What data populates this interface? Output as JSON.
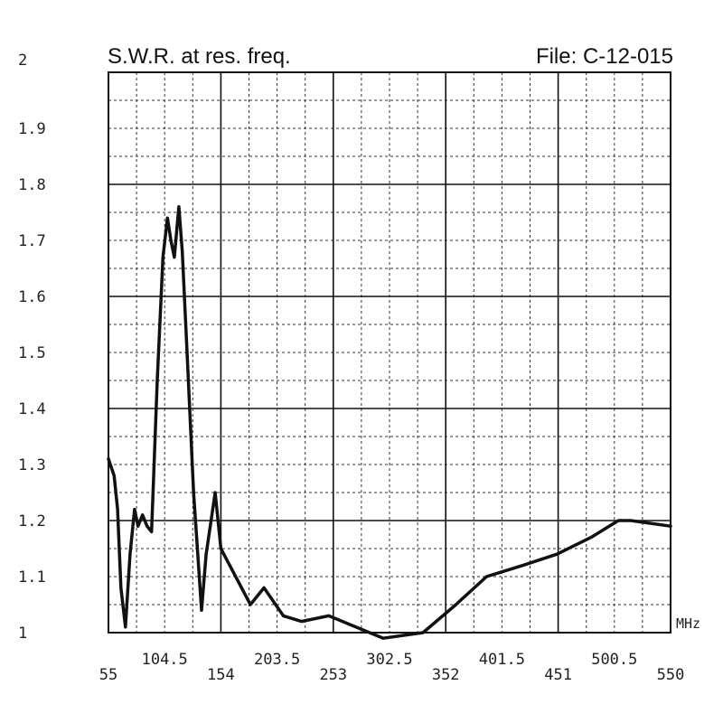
{
  "chart_data": {
    "type": "line",
    "title": "S.W.R. at res. freq.",
    "file_label": "File:  C-12-015",
    "x_unit": "MHz",
    "xlim": [
      55,
      550
    ],
    "ylim": [
      1,
      2
    ],
    "x_ticks_upper": [
      "104.5",
      "203.5",
      "302.5",
      "401.5",
      "500.5"
    ],
    "x_ticks_lower": [
      "55",
      "154",
      "253",
      "352",
      "451",
      "550"
    ],
    "y_ticks": [
      "1",
      "1.1",
      "1.2",
      "1.3",
      "1.4",
      "1.5",
      "1.6",
      "1.7",
      "1.8",
      "1.9",
      "2"
    ],
    "grid": true,
    "series": [
      {
        "x": [
          55,
          60,
          63,
          66,
          70,
          74,
          78,
          81,
          85,
          89,
          93,
          98,
          103,
          107,
          110,
          113,
          117,
          120,
          124,
          130,
          133,
          137,
          141,
          149,
          154,
          180,
          192,
          209,
          225,
          249,
          297,
          332,
          361,
          388,
          420,
          450,
          480,
          504,
          515,
          550
        ],
        "y": [
          1.31,
          1.28,
          1.22,
          1.08,
          1.01,
          1.14,
          1.22,
          1.19,
          1.21,
          1.19,
          1.18,
          1.45,
          1.67,
          1.74,
          1.7,
          1.67,
          1.76,
          1.68,
          1.51,
          1.25,
          1.16,
          1.04,
          1.14,
          1.25,
          1.15,
          1.05,
          1.08,
          1.03,
          1.02,
          1.03,
          0.99,
          1.0,
          1.05,
          1.1,
          1.12,
          1.14,
          1.17,
          1.2,
          1.2,
          1.19
        ]
      }
    ]
  }
}
